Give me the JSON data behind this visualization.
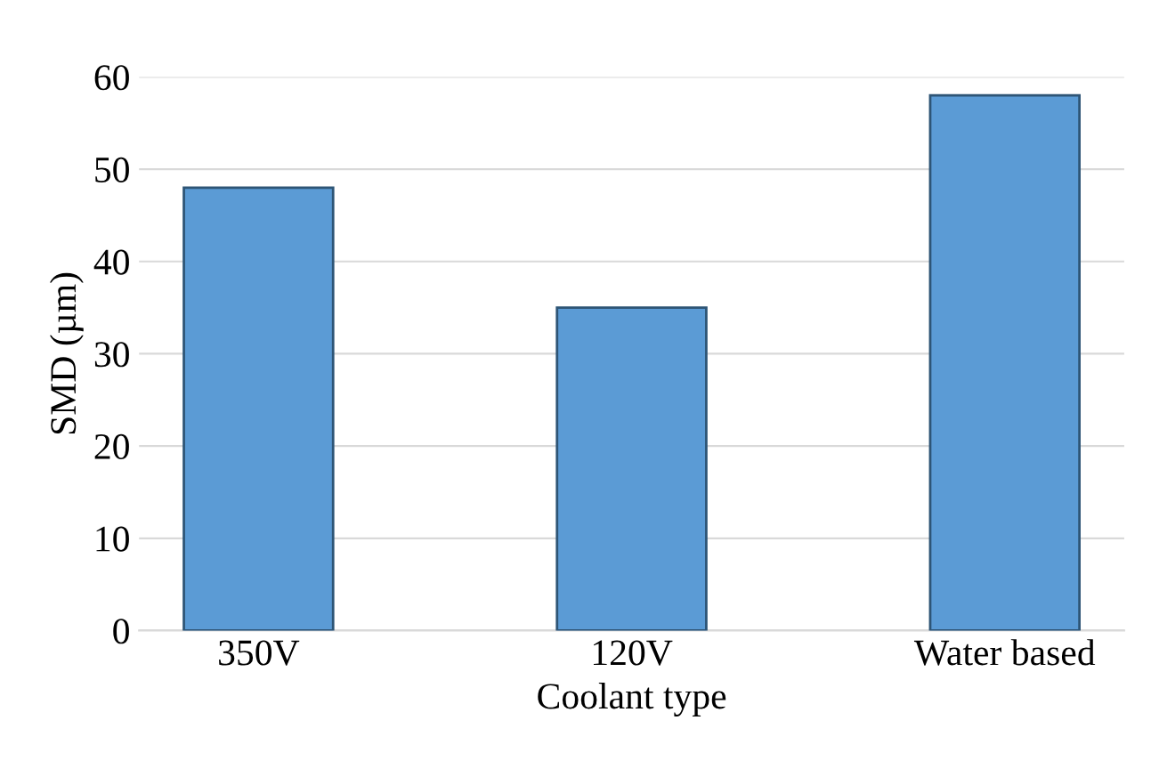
{
  "chart_data": {
    "type": "bar",
    "xlabel": "Coolant type",
    "ylabel": "SMD (µm)",
    "categories": [
      "350V",
      "120V",
      "Water based"
    ],
    "values": [
      48,
      35,
      58
    ],
    "color": "#5b9bd5",
    "ylim": [
      0,
      60
    ],
    "yticks": [
      0,
      10,
      20,
      30,
      40,
      50,
      60
    ],
    "grid": "y"
  }
}
